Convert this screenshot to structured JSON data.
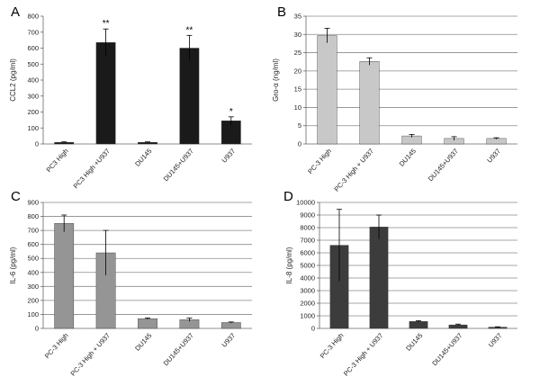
{
  "chart_data": [
    {
      "panel": "A",
      "type": "bar",
      "ylabel": "CCL2 (pg/ml)",
      "categories": [
        "PC3 High",
        "PC3 High +U937",
        "DU145",
        "DU145+U937",
        "U937"
      ],
      "values": [
        10,
        635,
        10,
        600,
        145
      ],
      "errors": [
        3,
        85,
        3,
        80,
        25
      ],
      "annotations": [
        "",
        "**",
        "",
        "**",
        "*"
      ],
      "ylim": [
        0,
        800
      ],
      "yticks": [
        "0",
        "100",
        "200",
        "300",
        "400",
        "500",
        "600",
        "700",
        "800"
      ],
      "color": "#1a1a1a",
      "grid": false
    },
    {
      "panel": "B",
      "type": "bar",
      "ylabel": "Gro-α (ng/ml)",
      "categories": [
        "PC-3 High",
        "PC-3 High + U937",
        "DU145",
        "DU145+U937",
        "U937"
      ],
      "values": [
        29.7,
        22.6,
        2.2,
        1.5,
        1.5
      ],
      "errors": [
        2.0,
        1.0,
        0.4,
        0.5,
        0.2
      ],
      "annotations": [
        "",
        "",
        "",
        "",
        ""
      ],
      "ylim": [
        0,
        35
      ],
      "yticks": [
        "0",
        "5",
        "10",
        "15",
        "20",
        "25",
        "30",
        "35"
      ],
      "color": "#c8c8c8",
      "grid": true
    },
    {
      "panel": "C",
      "type": "bar",
      "ylabel": "IL-6 (pg/ml)",
      "categories": [
        "PC-3 High",
        "PC-3 High + U937",
        "DU145",
        "DU145+U937",
        "U937"
      ],
      "values": [
        750,
        540,
        70,
        62,
        42
      ],
      "errors": [
        60,
        160,
        5,
        12,
        4
      ],
      "annotations": [
        "",
        "",
        "",
        "",
        ""
      ],
      "ylim": [
        0,
        900
      ],
      "yticks": [
        "0",
        "100",
        "200",
        "300",
        "400",
        "500",
        "600",
        "700",
        "800",
        "900"
      ],
      "color": "#959595",
      "grid": true
    },
    {
      "panel": "D",
      "type": "bar",
      "ylabel": "IL-8 (pg/ml)",
      "categories": [
        "PC-3 High",
        "PC-3 High + U937",
        "DU145",
        "DU145+U937",
        "U937"
      ],
      "values": [
        6600,
        8050,
        550,
        280,
        100
      ],
      "errors": [
        2850,
        950,
        60,
        60,
        30
      ],
      "annotations": [
        "",
        "",
        "",
        "",
        ""
      ],
      "ylim": [
        0,
        10000
      ],
      "yticks": [
        "0",
        "1000",
        "2000",
        "3000",
        "4000",
        "5000",
        "6000",
        "7000",
        "8000",
        "9000",
        "10000"
      ],
      "color": "#3c3c3c",
      "grid": true
    }
  ]
}
